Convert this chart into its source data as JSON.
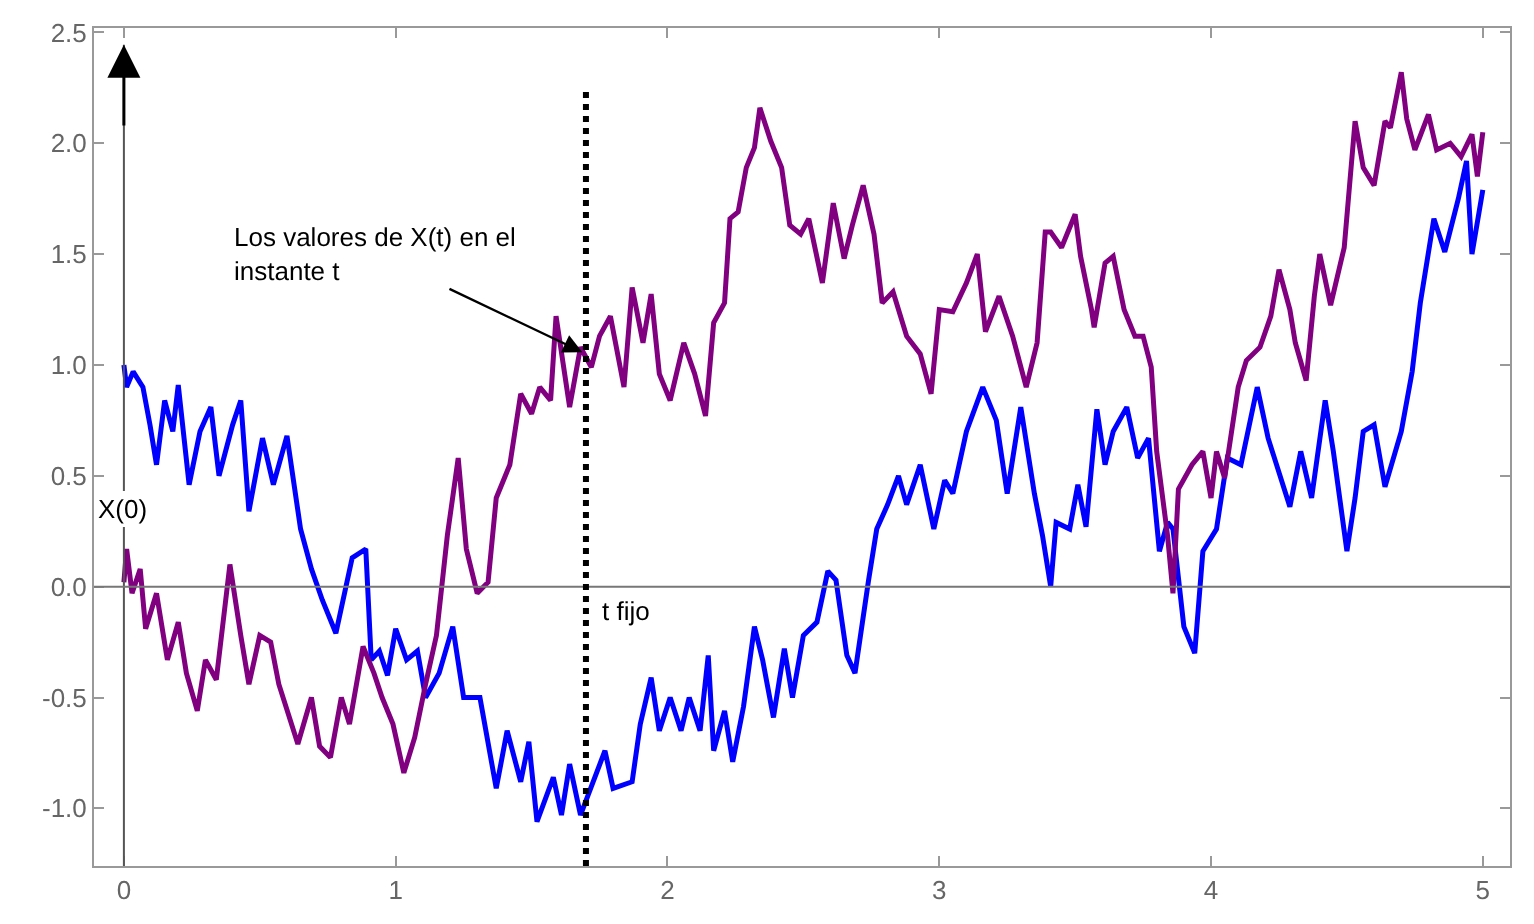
{
  "chart_data": {
    "type": "line",
    "series": [
      {
        "color": "#0000ff",
        "x": [
          0,
          0.01,
          0.034,
          0.07,
          0.096,
          0.12,
          0.15,
          0.18,
          0.2,
          0.24,
          0.28,
          0.32,
          0.35,
          0.4,
          0.43,
          0.46,
          0.51,
          0.55,
          0.6,
          0.65,
          0.69,
          0.73,
          0.78,
          0.84,
          0.89,
          0.91,
          0.94,
          0.97,
          1.0,
          1.04,
          1.08,
          1.11,
          1.16,
          1.21,
          1.25,
          1.31,
          1.37,
          1.41,
          1.46,
          1.49,
          1.52,
          1.58,
          1.61,
          1.64,
          1.68,
          1.77,
          1.8,
          1.87,
          1.9,
          1.94,
          1.97,
          2.01,
          2.05,
          2.08,
          2.12,
          2.15,
          2.17,
          2.21,
          2.24,
          2.28,
          2.32,
          2.35,
          2.39,
          2.43,
          2.46,
          2.5,
          2.55,
          2.59,
          2.62,
          2.66,
          2.69,
          2.74,
          2.77,
          2.81,
          2.85,
          2.88,
          2.93,
          2.98,
          3.02,
          3.05,
          3.1,
          3.16,
          3.21,
          3.25,
          3.3,
          3.35,
          3.38,
          3.41,
          3.43,
          3.48,
          3.51,
          3.54,
          3.58,
          3.61,
          3.64,
          3.69,
          3.73,
          3.77,
          3.81,
          3.84,
          3.86,
          3.9,
          3.94,
          3.97,
          4.02,
          4.06,
          4.11,
          4.17,
          4.21,
          4.29,
          4.33,
          4.37,
          4.42,
          4.45,
          4.5,
          4.53,
          4.56,
          4.6,
          4.64,
          4.7,
          4.74,
          4.77,
          4.82,
          4.86,
          4.91,
          4.94,
          4.96,
          5.0
        ],
        "values": [
          1.0,
          0.9,
          0.97,
          0.9,
          0.73,
          0.55,
          0.84,
          0.7,
          0.91,
          0.46,
          0.7,
          0.81,
          0.5,
          0.73,
          0.84,
          0.34,
          0.67,
          0.46,
          0.68,
          0.26,
          0.08,
          -0.06,
          -0.21,
          0.13,
          0.17,
          -0.33,
          -0.29,
          -0.4,
          -0.19,
          -0.33,
          -0.29,
          -0.5,
          -0.39,
          -0.18,
          -0.5,
          -0.5,
          -0.91,
          -0.65,
          -0.88,
          -0.7,
          -1.06,
          -0.86,
          -1.03,
          -0.8,
          -1.03,
          -0.74,
          -0.91,
          -0.88,
          -0.62,
          -0.41,
          -0.65,
          -0.5,
          -0.65,
          -0.5,
          -0.65,
          -0.31,
          -0.74,
          -0.56,
          -0.79,
          -0.54,
          -0.18,
          -0.33,
          -0.59,
          -0.28,
          -0.5,
          -0.22,
          -0.16,
          0.07,
          0.03,
          -0.31,
          -0.39,
          0.03,
          0.26,
          0.37,
          0.5,
          0.37,
          0.55,
          0.26,
          0.48,
          0.42,
          0.7,
          0.9,
          0.75,
          0.42,
          0.81,
          0.42,
          0.23,
          0.0,
          0.29,
          0.26,
          0.46,
          0.27,
          0.8,
          0.55,
          0.7,
          0.81,
          0.58,
          0.67,
          0.16,
          0.29,
          0.26,
          -0.18,
          -0.3,
          0.16,
          0.26,
          0.58,
          0.55,
          0.9,
          0.67,
          0.36,
          0.61,
          0.4,
          0.84,
          0.61,
          0.16,
          0.4,
          0.7,
          0.73,
          0.45,
          0.7,
          0.97,
          1.28,
          1.66,
          1.51,
          1.75,
          1.92,
          1.5,
          1.79
        ]
      },
      {
        "color": "#800080",
        "x": [
          0,
          0.01,
          0.03,
          0.06,
          0.08,
          0.12,
          0.16,
          0.2,
          0.23,
          0.27,
          0.3,
          0.34,
          0.39,
          0.43,
          0.46,
          0.5,
          0.54,
          0.57,
          0.64,
          0.69,
          0.72,
          0.76,
          0.8,
          0.83,
          0.88,
          0.92,
          0.95,
          0.99,
          1.03,
          1.07,
          1.11,
          1.15,
          1.19,
          1.23,
          1.26,
          1.3,
          1.34,
          1.37,
          1.42,
          1.46,
          1.5,
          1.53,
          1.57,
          1.59,
          1.64,
          1.68,
          1.72,
          1.75,
          1.79,
          1.84,
          1.87,
          1.91,
          1.94,
          1.97,
          2.01,
          2.06,
          2.1,
          2.14,
          2.17,
          2.21,
          2.23,
          2.26,
          2.29,
          2.32,
          2.34,
          2.38,
          2.42,
          2.45,
          2.49,
          2.52,
          2.57,
          2.61,
          2.65,
          2.68,
          2.72,
          2.76,
          2.79,
          2.83,
          2.88,
          2.93,
          2.97,
          3.0,
          3.05,
          3.1,
          3.14,
          3.17,
          3.22,
          3.27,
          3.32,
          3.36,
          3.39,
          3.41,
          3.45,
          3.5,
          3.52,
          3.56,
          3.57,
          3.61,
          3.64,
          3.68,
          3.72,
          3.75,
          3.78,
          3.8,
          3.84,
          3.86,
          3.88,
          3.93,
          3.97,
          4.0,
          4.02,
          4.05,
          4.1,
          4.13,
          4.18,
          4.22,
          4.25,
          4.29,
          4.31,
          4.35,
          4.38,
          4.4,
          4.44,
          4.49,
          4.53,
          4.56,
          4.6,
          4.64,
          4.66,
          4.7,
          4.72,
          4.75,
          4.8,
          4.83,
          4.88,
          4.92,
          4.96,
          4.98,
          5.0
        ],
        "values": [
          0.02,
          0.17,
          -0.03,
          0.08,
          -0.19,
          -0.03,
          -0.33,
          -0.16,
          -0.39,
          -0.56,
          -0.33,
          -0.42,
          0.1,
          -0.22,
          -0.44,
          -0.22,
          -0.25,
          -0.44,
          -0.71,
          -0.5,
          -0.72,
          -0.77,
          -0.5,
          -0.62,
          -0.27,
          -0.39,
          -0.5,
          -0.62,
          -0.84,
          -0.68,
          -0.44,
          -0.22,
          0.23,
          0.58,
          0.17,
          -0.03,
          0.02,
          0.4,
          0.55,
          0.87,
          0.78,
          0.9,
          0.84,
          1.22,
          0.81,
          1.08,
          0.99,
          1.13,
          1.22,
          0.9,
          1.35,
          1.1,
          1.32,
          0.96,
          0.84,
          1.1,
          0.96,
          0.77,
          1.19,
          1.28,
          1.66,
          1.69,
          1.89,
          1.98,
          2.16,
          2.01,
          1.89,
          1.63,
          1.59,
          1.66,
          1.37,
          1.73,
          1.48,
          1.63,
          1.81,
          1.59,
          1.28,
          1.33,
          1.13,
          1.05,
          0.87,
          1.25,
          1.24,
          1.37,
          1.5,
          1.15,
          1.31,
          1.13,
          0.9,
          1.1,
          1.6,
          1.6,
          1.53,
          1.68,
          1.49,
          1.25,
          1.17,
          1.46,
          1.49,
          1.25,
          1.13,
          1.13,
          0.99,
          0.61,
          0.23,
          -0.03,
          0.44,
          0.55,
          0.61,
          0.4,
          0.61,
          0.49,
          0.9,
          1.02,
          1.08,
          1.22,
          1.43,
          1.25,
          1.1,
          0.93,
          1.31,
          1.5,
          1.27,
          1.53,
          2.1,
          1.89,
          1.81,
          2.1,
          2.07,
          2.32,
          2.11,
          1.97,
          2.13,
          1.97,
          2.0,
          1.94,
          2.04,
          1.85,
          2.05
        ]
      }
    ],
    "xlim": [
      -0.11,
      5.1
    ],
    "xticks": [
      0,
      1,
      2,
      3,
      4,
      5
    ],
    "ylim": [
      -1.26,
      2.52
    ],
    "yticks": [
      {
        "value": -1,
        "label": "-1.0"
      },
      {
        "value": -0.5,
        "label": "-0.5"
      },
      {
        "value": 0,
        "label": "0.0"
      },
      {
        "value": 0.5,
        "label": "0.5"
      },
      {
        "value": 1,
        "label": "1.0"
      },
      {
        "value": 1.5,
        "label": "1.5"
      },
      {
        "value": 2,
        "label": "2.0"
      },
      {
        "value": 2.5,
        "label": "2.5"
      }
    ],
    "ref_lines": [
      {
        "axis": "x",
        "value": 0,
        "color": "#555555",
        "line_style": "solid"
      },
      {
        "axis": "y",
        "value": 0,
        "color": "#777777",
        "line_style": "solid"
      },
      {
        "axis": "x",
        "value": 1.7,
        "label": "t fijo",
        "color": "#000000",
        "line_style": "dotted"
      }
    ],
    "annotations": [
      {
        "text": "X(0)",
        "x": 0,
        "y": 0.35
      },
      {
        "text": "Los valores de X(t) en el\ninstante t",
        "x": 1.7,
        "y": 1.05
      }
    ],
    "marker": "none",
    "line_style": "solid"
  }
}
